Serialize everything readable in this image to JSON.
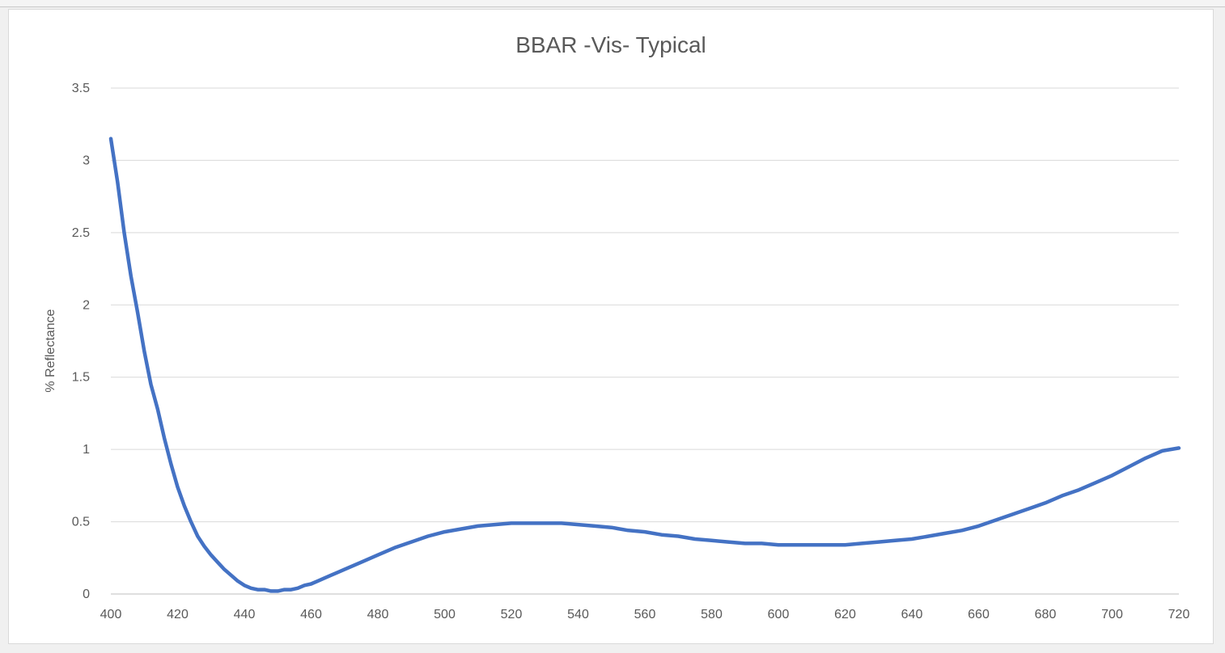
{
  "chart_data": {
    "type": "line",
    "title": "BBAR -Vis- Typical",
    "xlabel": "",
    "ylabel": "% Reflectance",
    "xlim": [
      400,
      720
    ],
    "ylim": [
      0,
      3.5
    ],
    "x_ticks": [
      "400",
      "420",
      "440",
      "460",
      "480",
      "500",
      "520",
      "540",
      "560",
      "580",
      "600",
      "620",
      "640",
      "660",
      "680",
      "700",
      "720"
    ],
    "y_ticks": [
      "0",
      "0.5",
      "1",
      "1.5",
      "2",
      "2.5",
      "3",
      "3.5"
    ],
    "grid": "horizontal",
    "legend": "none",
    "line_color": "#4472c4",
    "series": [
      {
        "x": [
          400,
          402,
          404,
          406,
          408,
          410,
          412,
          414,
          416,
          418,
          420,
          422,
          424,
          426,
          428,
          430,
          432,
          434,
          436,
          438,
          440,
          442,
          444,
          446,
          448,
          450,
          452,
          454,
          456,
          458,
          460,
          462,
          464,
          466,
          468,
          470,
          475,
          480,
          485,
          490,
          495,
          500,
          505,
          510,
          515,
          520,
          525,
          530,
          535,
          540,
          545,
          550,
          555,
          560,
          565,
          570,
          575,
          580,
          585,
          590,
          595,
          600,
          605,
          610,
          615,
          620,
          625,
          630,
          635,
          640,
          645,
          650,
          655,
          660,
          665,
          670,
          675,
          680,
          685,
          690,
          695,
          700,
          705,
          710,
          715,
          720
        ],
        "y": [
          3.15,
          2.85,
          2.5,
          2.2,
          1.95,
          1.68,
          1.45,
          1.28,
          1.08,
          0.9,
          0.74,
          0.61,
          0.5,
          0.4,
          0.33,
          0.27,
          0.22,
          0.17,
          0.13,
          0.09,
          0.06,
          0.04,
          0.03,
          0.03,
          0.02,
          0.02,
          0.03,
          0.03,
          0.04,
          0.06,
          0.07,
          0.09,
          0.11,
          0.13,
          0.15,
          0.17,
          0.22,
          0.27,
          0.32,
          0.36,
          0.4,
          0.43,
          0.45,
          0.47,
          0.48,
          0.49,
          0.49,
          0.49,
          0.49,
          0.48,
          0.47,
          0.46,
          0.44,
          0.43,
          0.41,
          0.4,
          0.38,
          0.37,
          0.36,
          0.35,
          0.35,
          0.34,
          0.34,
          0.34,
          0.34,
          0.34,
          0.35,
          0.36,
          0.37,
          0.38,
          0.4,
          0.42,
          0.44,
          0.47,
          0.51,
          0.55,
          0.59,
          0.63,
          0.68,
          0.72,
          0.77,
          0.82,
          0.88,
          0.94,
          0.99,
          1.01
        ]
      }
    ]
  }
}
